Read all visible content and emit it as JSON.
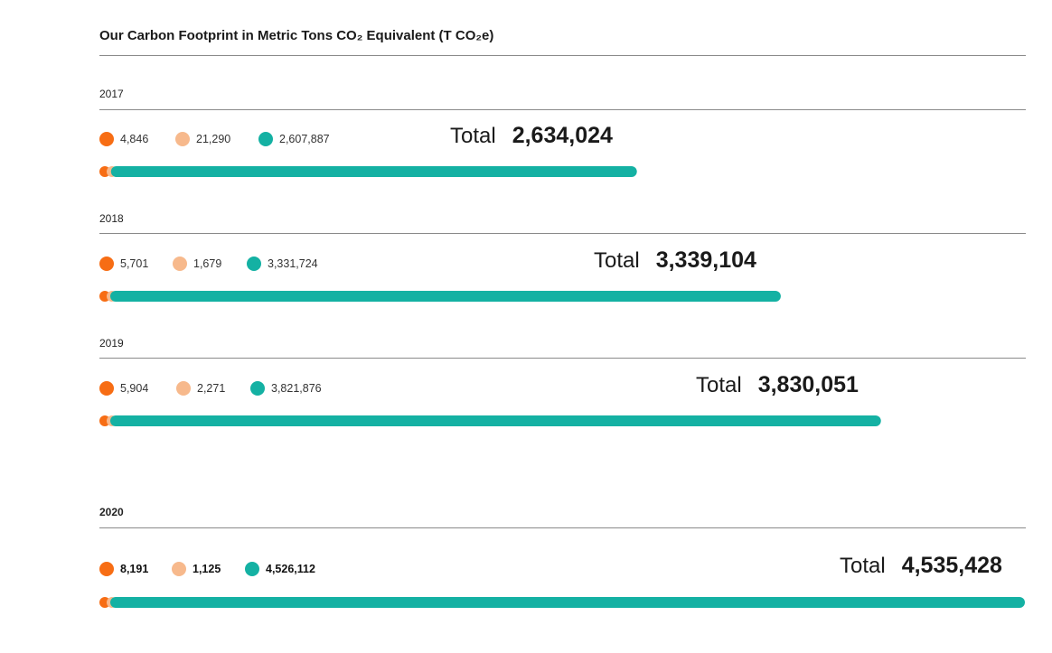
{
  "title": "Our Carbon Footprint in Metric Tons CO₂ Equivalent (T CO₂e)",
  "colors": {
    "orange": "#f76d14",
    "peach": "#f7b98c",
    "teal": "#14b1a3"
  },
  "chart_data": {
    "type": "bar",
    "orientation": "horizontal-stacked",
    "total_label": "Total",
    "categories": [
      "2017",
      "2018",
      "2019",
      "2020"
    ],
    "series": [
      {
        "color": "#f76d14",
        "values": [
          4846,
          5701,
          5904,
          8191
        ],
        "labels": [
          "4,846",
          "5,701",
          "5,904",
          "8,191"
        ]
      },
      {
        "color": "#f7b98c",
        "values": [
          21290,
          1679,
          2271,
          1125
        ],
        "labels": [
          "21,290",
          "1,679",
          "2,271",
          "1,125"
        ]
      },
      {
        "color": "#14b1a3",
        "values": [
          2607887,
          3331724,
          3821876,
          4526112
        ],
        "labels": [
          "2,607,887",
          "3,331,724",
          "3,821,876",
          "4,526,112"
        ]
      }
    ],
    "totals": [
      2634024,
      3339104,
      3830051,
      4535428
    ],
    "total_labels": [
      "2,634,024",
      "3,339,104",
      "3,830,051",
      "4,535,428"
    ]
  }
}
